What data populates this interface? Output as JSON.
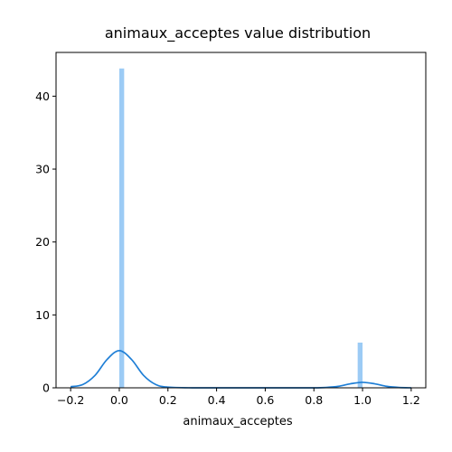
{
  "chart_data": {
    "type": "bar",
    "title": "animaux_acceptes value distribution",
    "xlabel": "animaux_acceptes",
    "ylabel": "",
    "xlim": [
      -0.26,
      1.26
    ],
    "ylim": [
      0,
      46
    ],
    "x_ticks": [
      {
        "value": -0.2,
        "label": "−0.2"
      },
      {
        "value": 0.0,
        "label": "0.0"
      },
      {
        "value": 0.2,
        "label": "0.2"
      },
      {
        "value": 0.4,
        "label": "0.4"
      },
      {
        "value": 0.6,
        "label": "0.6"
      },
      {
        "value": 0.8,
        "label": "0.8"
      },
      {
        "value": 1.0,
        "label": "1.0"
      },
      {
        "value": 1.2,
        "label": "1.2"
      }
    ],
    "y_ticks": [
      {
        "value": 0,
        "label": "0"
      },
      {
        "value": 10,
        "label": "10"
      },
      {
        "value": 20,
        "label": "20"
      },
      {
        "value": 30,
        "label": "30"
      },
      {
        "value": 40,
        "label": "40"
      }
    ],
    "histogram": {
      "bins": [
        {
          "x0": 0.0,
          "x1": 0.02,
          "density": 43.8
        },
        {
          "x0": 0.98,
          "x1": 1.0,
          "density": 6.2
        }
      ],
      "color": "#9ccbf5"
    },
    "kde": {
      "color": "#1f7fd6",
      "x": [
        -0.2,
        -0.15,
        -0.1,
        -0.05,
        0.0,
        0.05,
        0.1,
        0.15,
        0.2,
        0.3,
        0.4,
        0.5,
        0.6,
        0.7,
        0.8,
        0.85,
        0.9,
        0.95,
        1.0,
        1.05,
        1.1,
        1.15,
        1.2
      ],
      "y": [
        0.15,
        0.45,
        1.7,
        3.9,
        5.1,
        3.9,
        1.7,
        0.45,
        0.1,
        0.0,
        0.0,
        0.0,
        0.0,
        0.0,
        0.0,
        0.05,
        0.2,
        0.55,
        0.75,
        0.55,
        0.2,
        0.05,
        0.0
      ]
    },
    "grid": false,
    "legend": "none"
  }
}
